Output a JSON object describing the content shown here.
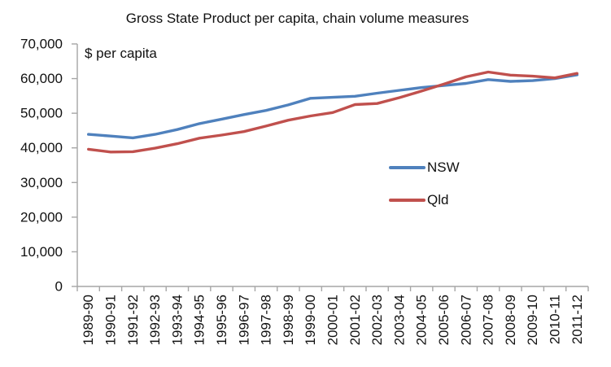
{
  "chart_data": {
    "type": "line",
    "title": "Gross State Product per capita, chain volume measures",
    "ylabel": "$ per capita",
    "xlabel": "",
    "ylim": [
      0,
      70000
    ],
    "ytick_step": 10000,
    "ytick_labels": [
      "0",
      "10,000",
      "20,000",
      "30,000",
      "40,000",
      "50,000",
      "60,000",
      "70,000"
    ],
    "grid": false,
    "legend_position": "center-right",
    "axis_color": "#A6A6A6",
    "categories": [
      "1989-90",
      "1990-91",
      "1991-92",
      "1992-93",
      "1993-94",
      "1994-95",
      "1995-96",
      "1996-97",
      "1997-98",
      "1998-99",
      "1999-00",
      "2000-01",
      "2001-02",
      "2002-03",
      "2003-04",
      "2004-05",
      "2005-06",
      "2006-07",
      "2007-08",
      "2008-09",
      "2009-10",
      "2010-11",
      "2011-12"
    ],
    "series": [
      {
        "name": "NSW",
        "color": "#4F81BD",
        "values": [
          43900,
          43400,
          42900,
          43900,
          45300,
          47000,
          48300,
          49600,
          50800,
          52400,
          54300,
          54600,
          54900,
          55800,
          56600,
          57400,
          58000,
          58600,
          59700,
          59200,
          59400,
          60000,
          61100
        ]
      },
      {
        "name": "Qld",
        "color": "#C0504D",
        "values": [
          39600,
          38800,
          38900,
          39900,
          41200,
          42800,
          43700,
          44700,
          46300,
          48000,
          49200,
          50200,
          52500,
          52800,
          54500,
          56400,
          58400,
          60500,
          61900,
          61000,
          60700,
          60200,
          61500
        ]
      }
    ]
  }
}
